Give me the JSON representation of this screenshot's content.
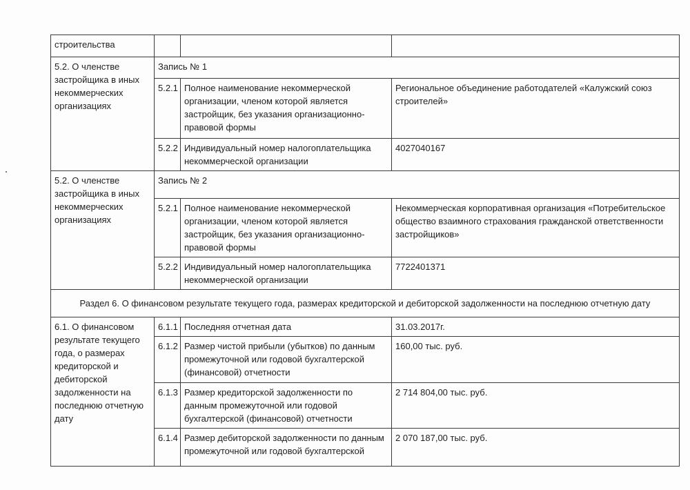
{
  "top_row": {
    "label": "строительства"
  },
  "membership": [
    {
      "section_label": "5.2. О членстве застройщика в иных некоммерческих организациях",
      "record": "Запись № 1",
      "rows": [
        {
          "code": "5.2.1",
          "label": "Полное наименование некоммерческой организации, членом которой является застройщик, без указания организационно-правовой формы",
          "value": "Региональное объединение работодателей «Калужский союз строителей»"
        },
        {
          "code": "5.2.2",
          "label": "Индивидуальный номер налогоплательщика некоммерческой организации",
          "value": "4027040167"
        }
      ]
    },
    {
      "section_label": "5.2. О членстве застройщика в иных некоммерческих организациях",
      "record": "Запись № 2",
      "rows": [
        {
          "code": "5.2.1",
          "label": "Полное наименование некоммерческой организации, членом которой является застройщик, без указания организационно-правовой формы",
          "value": "Некоммерческая корпоративная организация «Потребительское общество взаимного страхования гражданской ответственности застройщиков»"
        },
        {
          "code": "5.2.2",
          "label": "Индивидуальный номер налогоплательщика некоммерческой организации",
          "value": "7722401371"
        }
      ]
    }
  ],
  "section6": {
    "title": "Раздел 6. О финансовом результате текущего года, размерах кредиторской и дебиторской задолженности на последнюю отчетную дату",
    "label": "6.1. О финансовом результате текущего года, о размерах кредиторской и дебиторской задолженности на последнюю отчетную дату",
    "rows": [
      {
        "code": "6.1.1",
        "label": "Последняя отчетная дата",
        "value": "31.03.2017г."
      },
      {
        "code": "6.1.2",
        "label": "Размер чистой прибыли (убытков) по данным промежуточной или годовой бухгалтерской (финансовой) отчетности",
        "value": "160,00 тыс. руб."
      },
      {
        "code": "6.1.3",
        "label": "Размер кредиторской задолженности по данным промежуточной или годовой бухгалтерской (финансовой) отчетности",
        "value": "2 714 804,00 тыс. руб."
      },
      {
        "code": "6.1.4",
        "label": "Размер дебиторской задолженности по данным промежуточной или годовой бухгалтерской",
        "value": "2 070 187,00 тыс. руб."
      }
    ]
  }
}
